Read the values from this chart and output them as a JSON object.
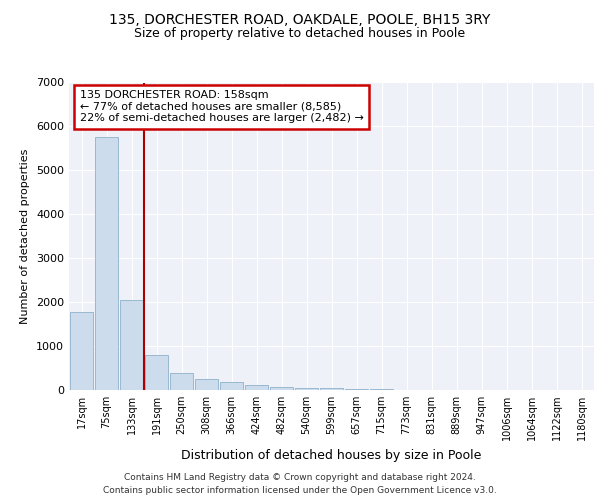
{
  "title1": "135, DORCHESTER ROAD, OAKDALE, POOLE, BH15 3RY",
  "title2": "Size of property relative to detached houses in Poole",
  "xlabel": "Distribution of detached houses by size in Poole",
  "ylabel": "Number of detached properties",
  "categories": [
    "17sqm",
    "75sqm",
    "133sqm",
    "191sqm",
    "250sqm",
    "308sqm",
    "366sqm",
    "424sqm",
    "482sqm",
    "540sqm",
    "599sqm",
    "657sqm",
    "715sqm",
    "773sqm",
    "831sqm",
    "889sqm",
    "947sqm",
    "1006sqm",
    "1064sqm",
    "1122sqm",
    "1180sqm"
  ],
  "values": [
    1780,
    5750,
    2050,
    800,
    380,
    240,
    180,
    115,
    70,
    50,
    40,
    30,
    30,
    0,
    0,
    0,
    0,
    0,
    0,
    0,
    0
  ],
  "bar_color": "#ccdcec",
  "bar_edge_color": "#99b8d0",
  "vline_color": "#aa0000",
  "annotation_line1": "135 DORCHESTER ROAD: 158sqm",
  "annotation_line2": "← 77% of detached houses are smaller (8,585)",
  "annotation_line3": "22% of semi-detached houses are larger (2,482) →",
  "annotation_box_color": "#cc0000",
  "ylim": [
    0,
    7000
  ],
  "yticks": [
    0,
    1000,
    2000,
    3000,
    4000,
    5000,
    6000,
    7000
  ],
  "footer1": "Contains HM Land Registry data © Crown copyright and database right 2024.",
  "footer2": "Contains public sector information licensed under the Open Government Licence v3.0.",
  "bg_color": "#ffffff",
  "plot_bg_color": "#eef2f8",
  "grid_color": "#ffffff"
}
